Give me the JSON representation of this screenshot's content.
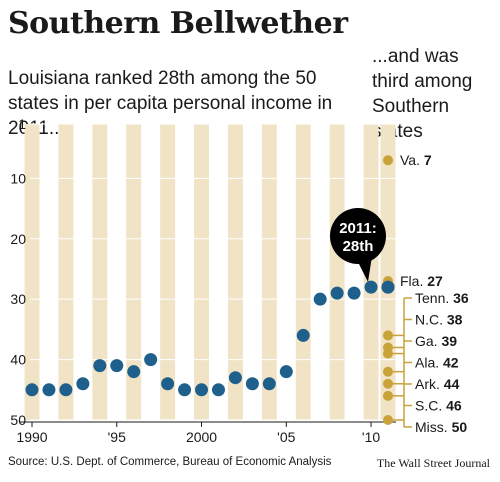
{
  "header": {
    "title": "Southern Bellwether",
    "subtitle": "Louisiana ranked 28th among the 50 states in per capita personal income in 2011...",
    "side_note": "...and was third among Southern states"
  },
  "footer": {
    "source": "Source: U.S. Dept. of Commerce, Bureau of Economic Analysis",
    "credit": "The Wall Street Journal"
  },
  "colors": {
    "band": "#f1e4c6",
    "louisiana_dot": "#1f5f8b",
    "southern_dot": "#c9a23a",
    "callout_bg": "#000000",
    "callout_text": "#ffffff"
  },
  "chart_data": {
    "type": "scatter",
    "title": "Southern Bellwether",
    "xlim": [
      1990,
      2011
    ],
    "ylim": [
      1,
      50
    ],
    "y_inverted": true,
    "y_ticks": [
      "1",
      "10",
      "20",
      "30",
      "40",
      "50"
    ],
    "x_ticks": [
      {
        "value": 1990,
        "label": "1990"
      },
      {
        "value": 1995,
        "label": "'95"
      },
      {
        "value": 2000,
        "label": "2000"
      },
      {
        "value": 2005,
        "label": "'05"
      },
      {
        "value": 2010,
        "label": "'10"
      }
    ],
    "series": [
      {
        "name": "Louisiana",
        "x": [
          1990,
          1991,
          1992,
          1993,
          1994,
          1995,
          1996,
          1997,
          1998,
          1999,
          2000,
          2001,
          2002,
          2003,
          2004,
          2005,
          2006,
          2007,
          2008,
          2009,
          2010,
          2011
        ],
        "y": [
          45,
          45,
          45,
          44,
          41,
          41,
          42,
          40,
          44,
          45,
          45,
          45,
          43,
          44,
          44,
          42,
          36,
          30,
          29,
          29,
          28,
          28
        ]
      }
    ],
    "callout": {
      "x": 2011,
      "y": 28,
      "line1": "2011:",
      "line2": "28th"
    },
    "southern_states_2011": [
      {
        "state": "Va.",
        "rank": 7
      },
      {
        "state": "Fla.",
        "rank": 27
      },
      {
        "state": "Tenn.",
        "rank": 36
      },
      {
        "state": "N.C.",
        "rank": 38
      },
      {
        "state": "Ga.",
        "rank": 39
      },
      {
        "state": "Ala.",
        "rank": 42
      },
      {
        "state": "Ark.",
        "rank": 44
      },
      {
        "state": "S.C.",
        "rank": 46
      },
      {
        "state": "Miss.",
        "rank": 50
      }
    ]
  }
}
